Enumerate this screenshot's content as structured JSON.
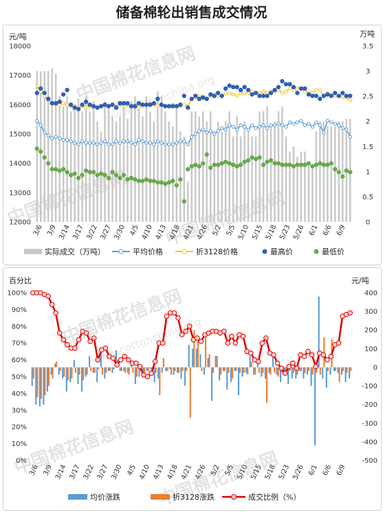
{
  "title": "储备棉轮出销售成交情况",
  "watermark": {
    "cn": "中国棉花信息网",
    "url": "www.cottonchina.org"
  },
  "colors": {
    "volume_bar": "#c8c8c8",
    "avg_price": "#5b9bd5",
    "price3128": "#f2c12e",
    "max_price": "#2e5fb8",
    "min_price": "#6aa84f",
    "avg_change": "#5b9bd5",
    "change3128": "#ed7d31",
    "deal_ratio": "#e00000"
  },
  "chart_data": [
    {
      "type": "combo",
      "left_unit": "元/吨",
      "right_unit": "万吨",
      "ylim_left": [
        12000,
        18000
      ],
      "yticks_left": [
        "12000",
        "13000",
        "14000",
        "15000",
        "16000",
        "17000",
        "18000"
      ],
      "ylim_right": [
        0,
        3.5
      ],
      "yticks_right": [
        "0",
        "0.5",
        "1",
        "1.5",
        "2",
        "2.5",
        "3",
        "3.5"
      ],
      "xtick_labels": [
        "3/6",
        "3/9",
        "3/14",
        "3/17",
        "3/22",
        "3/27",
        "3/30",
        "4/5",
        "4/10",
        "4/13",
        "4/18",
        "4/21",
        "4/26",
        "5/2",
        "5/5",
        "5/10",
        "5/15",
        "5/18",
        "5/23",
        "5/26",
        "6/1",
        "6/6",
        "6/9"
      ],
      "legend": [
        "实际成交（万吨）",
        "平均价格",
        "折3128价格",
        "最高价",
        "最低价"
      ],
      "series": [
        {
          "name": "实际成交（万吨）",
          "kind": "bar",
          "axis": "right",
          "values": [
            3.0,
            3.0,
            3.0,
            3.0,
            3.05,
            2.95,
            2.5,
            2.3,
            2.5,
            2.2,
            2.3,
            2.45,
            2.2,
            2.5,
            2.2,
            2.4,
            2.0,
            1.8,
            2.4,
            2.3,
            2.1,
            2.0,
            2.1,
            2.3,
            2.05,
            2.4,
            2.5,
            2.3,
            2.1,
            2.5,
            2.2,
            2.0,
            2.6,
            2.5,
            2.2,
            2.0,
            1.9,
            2.3,
            1.8,
            1.7,
            0.8,
            2.2,
            2.2,
            2.1,
            2.2,
            2.0,
            2.2,
            1.8,
            2.0,
            1.8,
            2.0,
            2.2,
            1.7,
            2.1,
            1.7,
            2.0,
            1.8,
            1.7,
            1.7,
            2.2,
            2.2,
            2.3,
            1.9,
            2.0,
            2.2,
            2.3,
            1.7,
            1.4,
            1.5,
            1.3,
            1.4,
            1.4,
            1.2,
            1.1,
            1.8,
            2.0,
            2.0,
            1.9,
            1.9,
            1.9,
            2.0,
            2.0,
            2.05,
            2.05
          ]
        },
        {
          "name": "平均价格",
          "kind": "line",
          "axis": "left",
          "values": [
            15450,
            15300,
            15050,
            14950,
            14850,
            14900,
            14850,
            14800,
            14800,
            14750,
            14700,
            14650,
            14750,
            14700,
            14700,
            14700,
            14650,
            14700,
            14750,
            14650,
            14650,
            14750,
            14700,
            14750,
            14750,
            14700,
            14650,
            14800,
            14750,
            14700,
            14700,
            14650,
            14750,
            14700,
            14650,
            14650,
            14650,
            14700,
            14750,
            14750,
            14650,
            14900,
            15000,
            15100,
            15150,
            15050,
            15100,
            15000,
            15100,
            15200,
            15150,
            15300,
            15250,
            15150,
            15300,
            15250,
            15150,
            15300,
            15200,
            15250,
            15300,
            15200,
            15300,
            15300,
            15350,
            15300,
            15250,
            15400,
            15350,
            15400,
            15450,
            15300,
            15350,
            15250,
            15400,
            15300,
            15050,
            15450,
            15400,
            15350,
            15300,
            15200,
            15150,
            14900
          ]
        },
        {
          "name": "折3128价格",
          "kind": "line",
          "axis": "left",
          "values": [
            16650,
            16450,
            16300,
            16150,
            16050,
            16000,
            16000,
            16050,
            16000,
            15950,
            15950,
            15900,
            15950,
            15900,
            15900,
            15950,
            15900,
            15950,
            15950,
            15950,
            16000,
            15950,
            16000,
            15950,
            16000,
            15950,
            16000,
            15900,
            16000,
            16000,
            16050,
            16000,
            15950,
            16000,
            15950,
            15950,
            16000,
            15950,
            15950,
            16000,
            15950,
            16200,
            16250,
            16300,
            16200,
            16200,
            16300,
            16350,
            16300,
            16300,
            16400,
            16400,
            16350,
            16300,
            16400,
            16400,
            16400,
            16450,
            16400,
            16400,
            16450,
            16400,
            16450,
            16450,
            16500,
            16400,
            16450,
            16550,
            16500,
            16550,
            16550,
            16450,
            16450,
            16400,
            16500,
            16500,
            16300,
            16400,
            16350,
            16300,
            16300,
            16250,
            16250,
            16150
          ]
        },
        {
          "name": "最高价",
          "kind": "scatter",
          "axis": "left",
          "values": [
            16400,
            16550,
            16400,
            16200,
            16050,
            16050,
            16100,
            16350,
            16500,
            16000,
            15900,
            15850,
            16000,
            16100,
            16000,
            15950,
            15900,
            15950,
            16000,
            15950,
            16000,
            15900,
            16050,
            16050,
            16050,
            15950,
            15950,
            16050,
            16000,
            16000,
            16000,
            16050,
            16200,
            16000,
            15950,
            15950,
            15950,
            15950,
            16000,
            16300,
            15900,
            16200,
            16300,
            16200,
            16250,
            16200,
            16350,
            16300,
            16400,
            16300,
            16550,
            16650,
            16600,
            16600,
            16500,
            16600,
            16500,
            16350,
            16400,
            16300,
            16300,
            16300,
            16400,
            16500,
            16600,
            16800,
            16700,
            16700,
            16600,
            16400,
            16550,
            16550,
            16350,
            16300,
            16300,
            16200,
            16300,
            16350,
            16300,
            16400,
            16300,
            16400,
            16300,
            16300
          ]
        },
        {
          "name": "最低价",
          "kind": "scatter",
          "axis": "left",
          "values": [
            14500,
            14400,
            14200,
            14000,
            13800,
            13800,
            13750,
            13800,
            13700,
            13600,
            13650,
            13500,
            13600,
            13750,
            13700,
            13700,
            13600,
            13650,
            13600,
            13500,
            13700,
            13600,
            13500,
            13600,
            13450,
            13500,
            13450,
            13400,
            13400,
            13450,
            13400,
            13400,
            13350,
            13350,
            13300,
            13350,
            13400,
            13250,
            13450,
            12700,
            13800,
            13900,
            13950,
            13900,
            14000,
            14300,
            13850,
            13950,
            13950,
            14000,
            14050,
            14000,
            13950,
            13900,
            13950,
            14050,
            14100,
            14200,
            14150,
            14200,
            13950,
            14050,
            14100,
            14000,
            14000,
            13950,
            13950,
            13950,
            13900,
            13950,
            13950,
            13950,
            14000,
            13900,
            13950,
            14000,
            13950,
            13950,
            14000,
            13800,
            13700,
            13550,
            13750,
            13700
          ]
        }
      ]
    },
    {
      "type": "combo",
      "left_unit": "百分比",
      "right_unit": "元/吨",
      "ylim_left": [
        0,
        100
      ],
      "yticks_left": [
        "0%",
        "10%",
        "20%",
        "30%",
        "40%",
        "50%",
        "60%",
        "70%",
        "80%",
        "90%",
        "100%"
      ],
      "ylim_right": [
        -500,
        400
      ],
      "yticks_right": [
        "-500",
        "-400",
        "-300",
        "-200",
        "-100",
        "0",
        "100",
        "200",
        "300",
        "400"
      ],
      "xtick_labels": [
        "3/6",
        "3/9",
        "3/14",
        "3/17",
        "3/22",
        "3/27",
        "3/30",
        "4/5",
        "4/10",
        "4/13",
        "4/18",
        "4/21",
        "4/26",
        "5/2",
        "5/5",
        "5/10",
        "5/15",
        "5/18",
        "5/23",
        "5/26",
        "6/1",
        "6/6",
        "6/9"
      ],
      "legend": [
        "均价涨跌",
        "折3128涨跌",
        "成交比例（%）"
      ],
      "series": [
        {
          "name": "均价涨跌",
          "kind": "bar",
          "axis": "right",
          "values": [
            -100,
            -200,
            -210,
            -200,
            -130,
            -40,
            20,
            -40,
            -60,
            -130,
            -80,
            40,
            -90,
            -130,
            -50,
            60,
            -30,
            -80,
            100,
            -60,
            -20,
            -30,
            90,
            -20,
            -20,
            -30,
            20,
            -90,
            -50,
            -40,
            -20,
            -10,
            -80,
            -60,
            -30,
            -20,
            -10,
            -40,
            -30,
            -60,
            -100,
            120,
            100,
            100,
            70,
            -40,
            50,
            -180,
            60,
            -70,
            -20,
            -120,
            -80,
            -20,
            -150,
            -50,
            -30,
            60,
            -40,
            20,
            -50,
            -60,
            -30,
            70,
            -40,
            -80,
            -30,
            -90,
            -60,
            -60,
            -20,
            -60,
            -40,
            -100,
            -420,
            380,
            -60,
            -110,
            -40,
            -20,
            -30,
            -40,
            -80,
            -60
          ]
        },
        {
          "name": "折3128涨跌",
          "kind": "bar",
          "axis": "right",
          "values": [
            -60,
            -160,
            -170,
            -150,
            -100,
            -60,
            30,
            -20,
            -50,
            -70,
            -60,
            -30,
            -40,
            -70,
            -40,
            -20,
            -30,
            -10,
            -40,
            -30,
            -20,
            -10,
            40,
            -20,
            -30,
            -40,
            -30,
            -50,
            -20,
            -30,
            -20,
            -20,
            -30,
            -150,
            50,
            -20,
            -40,
            -20,
            -30,
            -20,
            -20,
            -270,
            200,
            150,
            -20,
            180,
            70,
            -30,
            60,
            -40,
            -20,
            -30,
            -60,
            -20,
            -30,
            -30,
            -40,
            30,
            -40,
            -30,
            -30,
            -190,
            -40,
            -30,
            -50,
            -30,
            -20,
            -20,
            -30,
            -40,
            -20,
            -30,
            -20,
            -40,
            -30,
            -40,
            160,
            -20,
            150,
            -20,
            -80,
            -20,
            -30,
            -20
          ]
        },
        {
          "name": "成交比例（%）",
          "kind": "line",
          "axis": "left",
          "values": [
            100,
            100,
            100,
            99,
            98,
            93,
            88,
            76,
            72,
            69,
            67,
            67,
            72,
            77,
            76,
            71,
            73,
            60,
            66,
            67,
            62,
            61,
            57,
            60,
            62,
            60,
            58,
            58,
            56,
            51,
            50,
            52,
            59,
            70,
            70,
            86,
            88,
            88,
            85,
            75,
            77,
            80,
            72,
            73,
            71,
            75,
            76,
            77,
            77,
            76,
            77,
            70,
            74,
            70,
            75,
            74,
            65,
            64,
            60,
            59,
            70,
            73,
            64,
            63,
            58,
            55,
            52,
            56,
            58,
            55,
            63,
            62,
            65,
            63,
            56,
            64,
            63,
            60,
            62,
            69,
            70,
            86,
            87,
            88
          ]
        }
      ]
    }
  ]
}
